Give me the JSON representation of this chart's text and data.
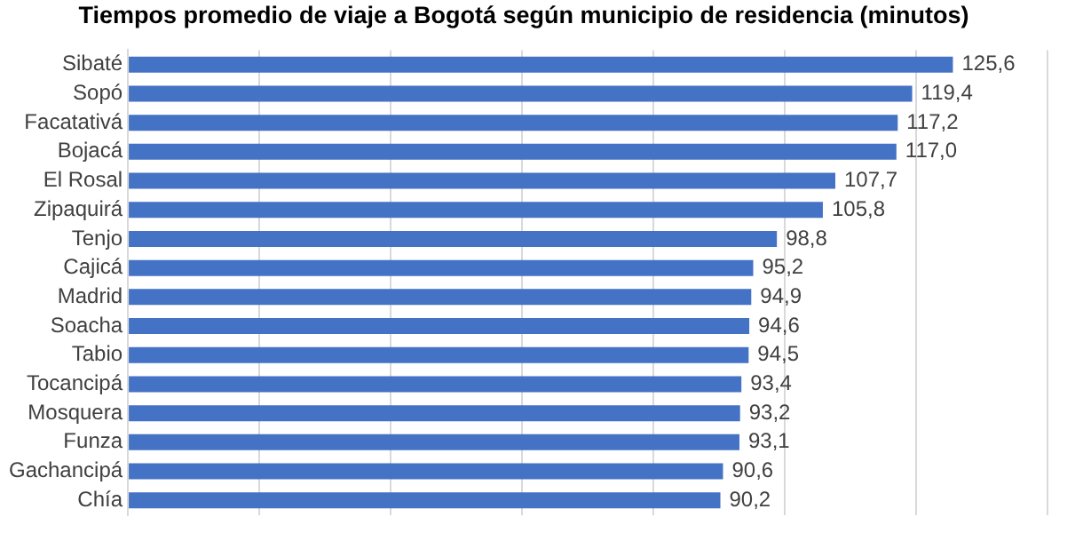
{
  "chart_data": {
    "type": "bar",
    "orientation": "horizontal",
    "title": "Tiempos promedio de viaje a Bogotá según municipio de residencia (minutos)",
    "categories": [
      "Sibaté",
      "Sopó",
      "Facatativá",
      "Bojacá",
      "El Rosal",
      "Zipaquirá",
      "Tenjo",
      "Cajicá",
      "Madrid",
      "Soacha",
      "Tabio",
      "Tocancipá",
      "Mosquera",
      "Funza",
      "Gachancipá",
      "Chía"
    ],
    "values": [
      125.6,
      119.4,
      117.2,
      117.0,
      107.7,
      105.8,
      98.8,
      95.2,
      94.9,
      94.6,
      94.5,
      93.4,
      93.2,
      93.1,
      90.6,
      90.2
    ],
    "value_labels": [
      "125,6",
      "119,4",
      "117,2",
      "117,0",
      "107,7",
      "105,8",
      "98,8",
      "95,2",
      "94,9",
      "94,6",
      "94,5",
      "93,4",
      "93,2",
      "93,1",
      "90,6",
      "90,2"
    ],
    "color": "#4472c4",
    "xlim": [
      0,
      140
    ],
    "xticks": [
      {
        "value": 0,
        "label": null
      },
      {
        "value": 20,
        "label": null
      },
      {
        "value": 40,
        "label": null
      },
      {
        "value": 60,
        "label": null
      },
      {
        "value": 80,
        "label": null
      },
      {
        "value": 100,
        "label": null
      },
      {
        "value": 120,
        "label": null
      },
      {
        "value": 140,
        "label": null
      }
    ],
    "grid": "x",
    "tick_labels": "y"
  }
}
